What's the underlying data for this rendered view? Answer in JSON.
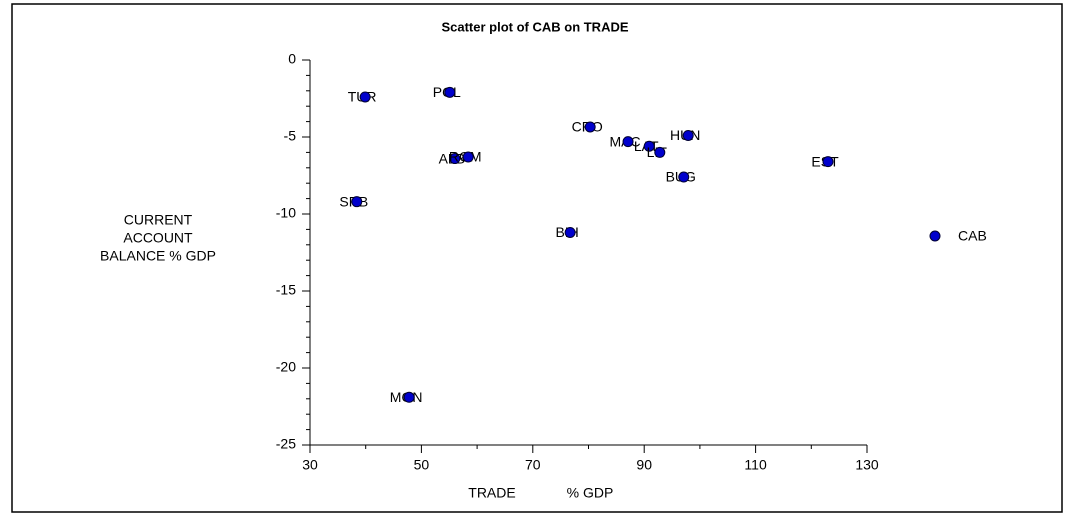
{
  "chart_data": {
    "type": "scatter",
    "title": "Scatter plot of CAB on TRADE",
    "xlabel": [
      "TRADE",
      "% GDP"
    ],
    "ylabel": [
      "CURRENT",
      "ACCOUNT",
      "BALANCE % GDP"
    ],
    "xlim": [
      30,
      130
    ],
    "xticks": [
      30,
      50,
      70,
      90,
      110,
      130
    ],
    "xminorticks": [
      40,
      60,
      80,
      100,
      120
    ],
    "ylim": [
      -25,
      0
    ],
    "yticks": [
      0,
      -5,
      -10,
      -15,
      -20,
      -25
    ],
    "yminorticks": [
      -1,
      -2,
      -3,
      -4,
      -6,
      -7,
      -8,
      -9,
      -11,
      -12,
      -13,
      -14,
      -16,
      -17,
      -18,
      -19,
      -21,
      -22,
      -23,
      -24
    ],
    "legend": "right",
    "series": [
      {
        "name": "CAB",
        "color": "#0000cc",
        "labels": [
          "TUR",
          "POL",
          "CRO",
          "MAC",
          "LAT",
          "LIT",
          "HUN",
          "ALB",
          "ROM",
          "EST",
          "BUG",
          "SRB",
          "BIH",
          "MON"
        ],
        "x": [
          39.9,
          55.1,
          80.3,
          87.1,
          90.9,
          92.8,
          97.9,
          56,
          58.4,
          123,
          97.1,
          38.4,
          76.7,
          47.8
        ],
        "values": [
          -2.4,
          -2.1,
          -4.35,
          -5.3,
          -5.6,
          -6.0,
          -4.9,
          -6.4,
          -6.3,
          -6.6,
          -7.6,
          -9.2,
          -11.2,
          -21.9
        ]
      }
    ]
  }
}
